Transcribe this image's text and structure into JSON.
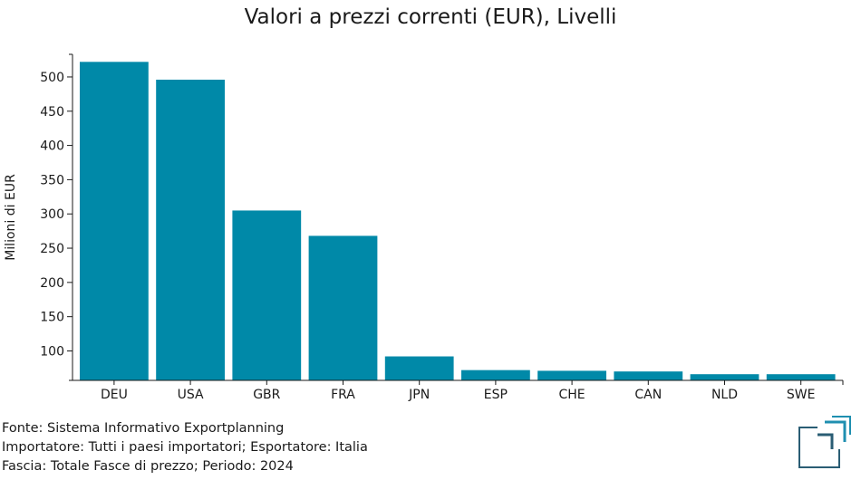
{
  "chart_data": {
    "type": "bar",
    "title": "Valori a prezzi correnti (EUR), Livelli",
    "xlabel": "",
    "ylabel": "Milioni di EUR",
    "categories": [
      "DEU",
      "USA",
      "GBR",
      "FRA",
      "JPN",
      "ESP",
      "CHE",
      "CAN",
      "NLD",
      "SWE"
    ],
    "values": [
      522,
      496,
      305,
      268,
      92,
      72,
      71,
      70,
      66,
      66
    ],
    "yticks": [
      100,
      150,
      200,
      250,
      300,
      350,
      400,
      450,
      500
    ],
    "ylim": [
      57,
      533
    ],
    "grid": false,
    "bar_color": "#0089a8"
  },
  "footer": {
    "line1": "Fonte: Sistema Informativo Exportplanning",
    "line2": "Importatore: Tutti i paesi importatori; Esportatore: Italia",
    "line3": "Fascia: Totale Fasce di prezzo; Periodo: 2024"
  },
  "logo": {
    "icon": "exportplanning-logo-icon",
    "color_dark": "#2a5d74",
    "color_light": "#1f8fb0"
  }
}
